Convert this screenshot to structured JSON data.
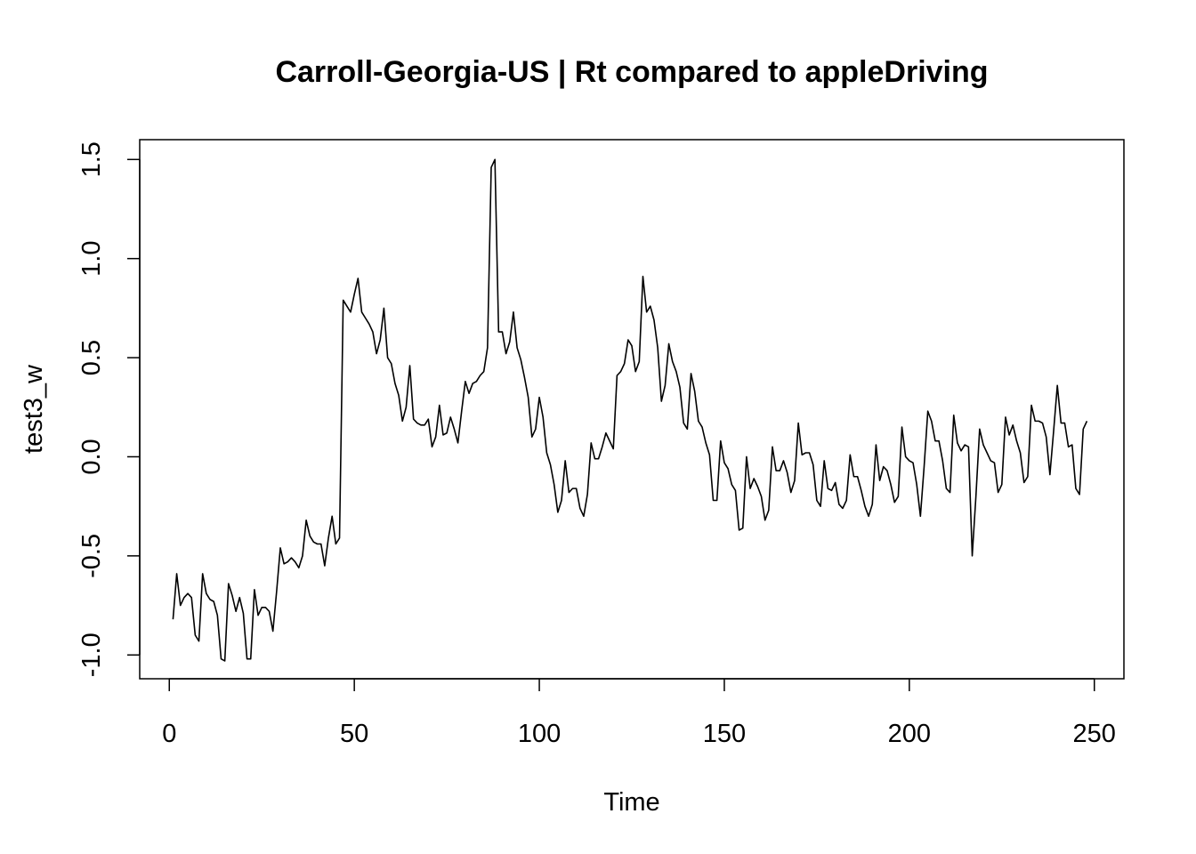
{
  "chart_data": {
    "type": "line",
    "title": "Carroll-Georgia-US | Rt compared to appleDriving",
    "xlabel": "Time",
    "ylabel": "test3_w",
    "xlim": [
      -8,
      258
    ],
    "ylim": [
      -1.12,
      1.6
    ],
    "x_ticks": [
      0,
      50,
      100,
      150,
      200,
      250
    ],
    "y_ticks": [
      -1.0,
      -0.5,
      0.0,
      0.5,
      1.0,
      1.5
    ],
    "x_tick_labels": [
      "0",
      "50",
      "100",
      "150",
      "200",
      "250"
    ],
    "y_tick_labels": [
      "-1.0",
      "-0.5",
      "0.0",
      "0.5",
      "1.0",
      "1.5"
    ],
    "grid": false,
    "line_color": "#000000",
    "series": [
      {
        "x_start": 1,
        "values": [
          -0.82,
          -0.59,
          -0.75,
          -0.71,
          -0.69,
          -0.71,
          -0.9,
          -0.93,
          -0.59,
          -0.69,
          -0.72,
          -0.73,
          -0.8,
          -1.02,
          -1.03,
          -0.64,
          -0.7,
          -0.78,
          -0.71,
          -0.79,
          -1.02,
          -1.02,
          -0.67,
          -0.8,
          -0.76,
          -0.76,
          -0.78,
          -0.88,
          -0.68,
          -0.46,
          -0.54,
          -0.53,
          -0.51,
          -0.53,
          -0.56,
          -0.5,
          -0.32,
          -0.4,
          -0.43,
          -0.44,
          -0.44,
          -0.55,
          -0.41,
          -0.3,
          -0.44,
          -0.41,
          0.79,
          0.76,
          0.73,
          0.82,
          0.9,
          0.73,
          0.7,
          0.67,
          0.63,
          0.52,
          0.59,
          0.75,
          0.5,
          0.47,
          0.37,
          0.31,
          0.18,
          0.25,
          0.46,
          0.19,
          0.17,
          0.16,
          0.16,
          0.19,
          0.05,
          0.1,
          0.26,
          0.11,
          0.12,
          0.2,
          0.14,
          0.07,
          0.23,
          0.38,
          0.32,
          0.37,
          0.38,
          0.41,
          0.43,
          0.55,
          1.46,
          1.5,
          0.63,
          0.63,
          0.52,
          0.58,
          0.73,
          0.55,
          0.49,
          0.4,
          0.3,
          0.1,
          0.14,
          0.3,
          0.2,
          0.02,
          -0.04,
          -0.14,
          -0.28,
          -0.22,
          -0.02,
          -0.18,
          -0.16,
          -0.16,
          -0.26,
          -0.3,
          -0.19,
          0.07,
          -0.01,
          -0.01,
          0.05,
          0.12,
          0.08,
          0.04,
          0.41,
          0.43,
          0.47,
          0.59,
          0.56,
          0.43,
          0.48,
          0.91,
          0.73,
          0.76,
          0.69,
          0.55,
          0.28,
          0.36,
          0.57,
          0.48,
          0.43,
          0.35,
          0.17,
          0.14,
          0.42,
          0.33,
          0.18,
          0.15,
          0.07,
          0.01,
          -0.22,
          -0.22,
          0.08,
          -0.03,
          -0.06,
          -0.14,
          -0.17,
          -0.37,
          -0.36,
          0.0,
          -0.16,
          -0.11,
          -0.15,
          -0.2,
          -0.32,
          -0.27,
          0.05,
          -0.07,
          -0.07,
          -0.02,
          -0.08,
          -0.18,
          -0.12,
          0.17,
          0.01,
          0.02,
          0.02,
          -0.04,
          -0.22,
          -0.25,
          -0.02,
          -0.16,
          -0.17,
          -0.13,
          -0.24,
          -0.26,
          -0.22,
          0.01,
          -0.1,
          -0.1,
          -0.17,
          -0.25,
          -0.3,
          -0.24,
          0.06,
          -0.12,
          -0.05,
          -0.07,
          -0.14,
          -0.23,
          -0.2,
          0.15,
          0.0,
          -0.02,
          -0.03,
          -0.14,
          -0.3,
          -0.05,
          0.23,
          0.18,
          0.08,
          0.08,
          -0.02,
          -0.16,
          -0.18,
          0.21,
          0.07,
          0.03,
          0.06,
          0.05,
          -0.5,
          -0.2,
          0.14,
          0.06,
          0.02,
          -0.02,
          -0.03,
          -0.18,
          -0.14,
          0.2,
          0.11,
          0.16,
          0.08,
          0.02,
          -0.13,
          -0.1,
          0.26,
          0.18,
          0.18,
          0.17,
          0.1,
          -0.09,
          0.13,
          0.36,
          0.17,
          0.17,
          0.05,
          0.06,
          -0.16,
          -0.19,
          0.14,
          0.18
        ]
      }
    ]
  }
}
